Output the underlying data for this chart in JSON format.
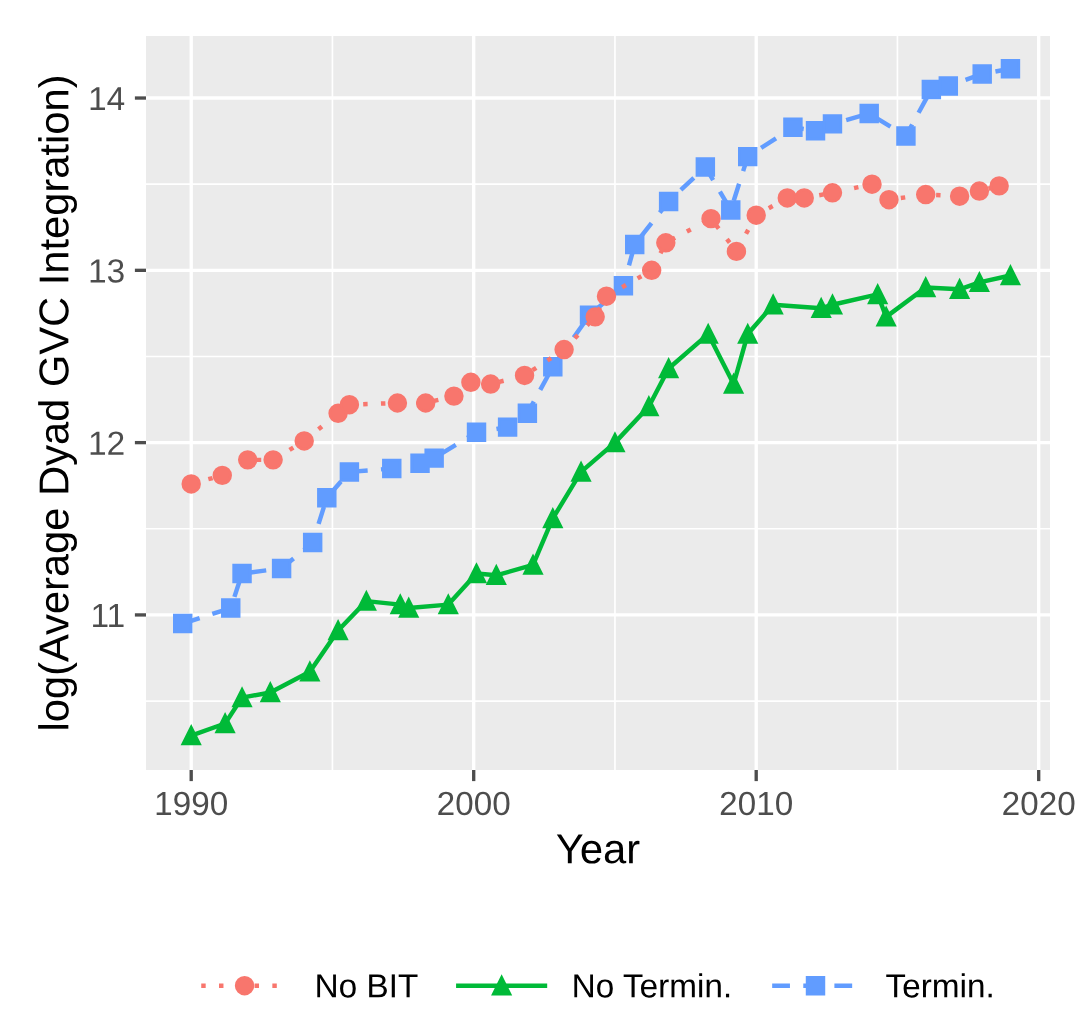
{
  "chart_data": {
    "type": "line",
    "xlabel": "Year",
    "ylabel": "log(Average Dyad GVC Integration)",
    "xlim": [
      1988.4,
      2020.4
    ],
    "ylim": [
      10.1,
      14.36
    ],
    "xticks": [
      1990,
      2000,
      2010,
      2020
    ],
    "yticks": [
      11,
      12,
      13,
      14
    ],
    "grid": true,
    "legend": "bottom",
    "series": [
      {
        "name": "No BIT",
        "color": "#f8766d",
        "marker": "circle",
        "line_style": "dotted",
        "x": [
          1990.0,
          1991.1,
          1992.0,
          1992.9,
          1994.0,
          1995.2,
          1995.6,
          1997.3,
          1998.3,
          1999.3,
          1999.9,
          2000.6,
          2001.8,
          2003.2,
          2004.3,
          2004.7,
          2006.3,
          2006.8,
          2008.4,
          2009.3,
          2010.0,
          2011.1,
          2011.7,
          2012.7,
          2014.1,
          2014.7,
          2016.0,
          2017.2,
          2017.9,
          2018.6
        ],
        "values": [
          11.76,
          11.81,
          11.9,
          11.9,
          12.01,
          12.17,
          12.22,
          12.23,
          12.23,
          12.27,
          12.35,
          12.34,
          12.39,
          12.54,
          12.73,
          12.85,
          13.0,
          13.16,
          13.3,
          13.11,
          13.32,
          13.42,
          13.42,
          13.45,
          13.5,
          13.41,
          13.44,
          13.43,
          13.46,
          13.49
        ]
      },
      {
        "name": "No Termin.",
        "color": "#00ba38",
        "marker": "triangle",
        "line_style": "solid",
        "x": [
          1990.0,
          1991.2,
          1991.8,
          1992.8,
          1994.2,
          1995.2,
          1996.2,
          1997.4,
          1997.7,
          1999.1,
          2000.1,
          2000.8,
          2002.1,
          2002.8,
          2003.8,
          2005.0,
          2006.2,
          2006.9,
          2008.3,
          2009.2,
          2009.7,
          2010.6,
          2012.3,
          2012.7,
          2014.3,
          2014.6,
          2016.0,
          2017.2,
          2017.9,
          2019.0
        ],
        "values": [
          10.3,
          10.37,
          10.52,
          10.55,
          10.67,
          10.91,
          11.08,
          11.06,
          11.04,
          11.06,
          11.24,
          11.23,
          11.29,
          11.56,
          11.83,
          12.0,
          12.21,
          12.43,
          12.63,
          12.34,
          12.63,
          12.8,
          12.78,
          12.8,
          12.86,
          12.73,
          12.9,
          12.89,
          12.93,
          12.97
        ]
      },
      {
        "name": "Termin.",
        "color": "#619cff",
        "marker": "square",
        "line_style": "dashed",
        "x": [
          1989.7,
          1991.4,
          1991.8,
          1993.2,
          1994.3,
          1994.8,
          1995.6,
          1997.1,
          1998.1,
          1998.6,
          2000.1,
          2001.2,
          2001.9,
          2002.8,
          2004.1,
          2005.3,
          2005.7,
          2006.9,
          2008.2,
          2009.1,
          2009.7,
          2011.3,
          2012.1,
          2012.7,
          2014.0,
          2015.3,
          2016.2,
          2016.8,
          2018.0,
          2019.0
        ],
        "values": [
          10.95,
          11.04,
          11.24,
          11.27,
          11.42,
          11.68,
          11.83,
          11.85,
          11.88,
          11.91,
          12.06,
          12.09,
          12.17,
          12.44,
          12.74,
          12.91,
          13.15,
          13.4,
          13.6,
          13.35,
          13.66,
          13.83,
          13.81,
          13.85,
          13.91,
          13.78,
          14.05,
          14.07,
          14.14,
          14.17
        ]
      }
    ]
  }
}
